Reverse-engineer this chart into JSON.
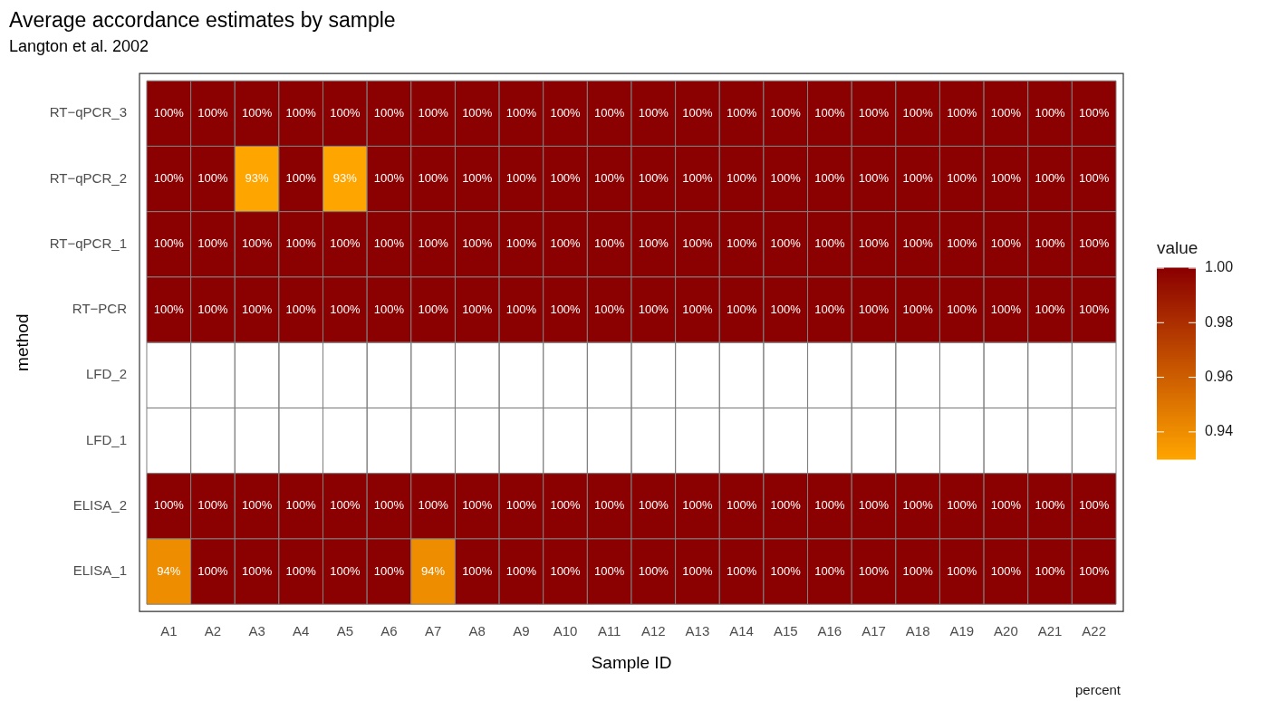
{
  "chart_data": {
    "type": "heatmap",
    "title": "Average accordance estimates by sample",
    "subtitle": "Langton et al. 2002",
    "xlabel": "Sample ID",
    "ylabel": "method",
    "legend_title": "value",
    "annotations": [
      "percent"
    ],
    "categories": [
      "A1",
      "A2",
      "A3",
      "A4",
      "A5",
      "A6",
      "A7",
      "A8",
      "A9",
      "A10",
      "A11",
      "A12",
      "A13",
      "A14",
      "A15",
      "A16",
      "A17",
      "A18",
      "A19",
      "A20",
      "A21",
      "A22"
    ],
    "y_categories": [
      "RT−qPCR_3",
      "RT−qPCR_2",
      "RT−qPCR_1",
      "RT−PCR",
      "LFD_2",
      "LFD_1",
      "ELISA_2",
      "ELISA_1"
    ],
    "cells": [
      [
        1,
        1,
        1,
        1,
        1,
        1,
        1,
        1,
        1,
        1,
        1,
        1,
        1,
        1,
        1,
        1,
        1,
        1,
        1,
        1,
        1,
        1
      ],
      [
        1,
        1,
        0.93,
        1,
        0.93,
        1,
        1,
        1,
        1,
        1,
        1,
        1,
        1,
        1,
        1,
        1,
        1,
        1,
        1,
        1,
        1,
        1
      ],
      [
        1,
        1,
        1,
        1,
        1,
        1,
        1,
        1,
        1,
        1,
        1,
        1,
        1,
        1,
        1,
        1,
        1,
        1,
        1,
        1,
        1,
        1
      ],
      [
        1,
        1,
        1,
        1,
        1,
        1,
        1,
        1,
        1,
        1,
        1,
        1,
        1,
        1,
        1,
        1,
        1,
        1,
        1,
        1,
        1,
        1
      ],
      [
        null,
        null,
        null,
        null,
        null,
        null,
        null,
        null,
        null,
        null,
        null,
        null,
        null,
        null,
        null,
        null,
        null,
        null,
        null,
        null,
        null,
        null
      ],
      [
        null,
        null,
        null,
        null,
        null,
        null,
        null,
        null,
        null,
        null,
        null,
        null,
        null,
        null,
        null,
        null,
        null,
        null,
        null,
        null,
        null,
        null
      ],
      [
        1,
        1,
        1,
        1,
        1,
        1,
        1,
        1,
        1,
        1,
        1,
        1,
        1,
        1,
        1,
        1,
        1,
        1,
        1,
        1,
        1,
        1
      ],
      [
        0.94,
        1,
        1,
        1,
        1,
        1,
        0.94,
        1,
        1,
        1,
        1,
        1,
        1,
        1,
        1,
        1,
        1,
        1,
        1,
        1,
        1,
        1
      ]
    ],
    "cell_labels": [
      [
        "100%",
        "100%",
        "100%",
        "100%",
        "100%",
        "100%",
        "100%",
        "100%",
        "100%",
        "100%",
        "100%",
        "100%",
        "100%",
        "100%",
        "100%",
        "100%",
        "100%",
        "100%",
        "100%",
        "100%",
        "100%",
        "100%"
      ],
      [
        "100%",
        "100%",
        "93%",
        "100%",
        "93%",
        "100%",
        "100%",
        "100%",
        "100%",
        "100%",
        "100%",
        "100%",
        "100%",
        "100%",
        "100%",
        "100%",
        "100%",
        "100%",
        "100%",
        "100%",
        "100%",
        "100%"
      ],
      [
        "100%",
        "100%",
        "100%",
        "100%",
        "100%",
        "100%",
        "100%",
        "100%",
        "100%",
        "100%",
        "100%",
        "100%",
        "100%",
        "100%",
        "100%",
        "100%",
        "100%",
        "100%",
        "100%",
        "100%",
        "100%",
        "100%"
      ],
      [
        "100%",
        "100%",
        "100%",
        "100%",
        "100%",
        "100%",
        "100%",
        "100%",
        "100%",
        "100%",
        "100%",
        "100%",
        "100%",
        "100%",
        "100%",
        "100%",
        "100%",
        "100%",
        "100%",
        "100%",
        "100%",
        "100%"
      ],
      [
        null,
        null,
        null,
        null,
        null,
        null,
        null,
        null,
        null,
        null,
        null,
        null,
        null,
        null,
        null,
        null,
        null,
        null,
        null,
        null,
        null,
        null
      ],
      [
        null,
        null,
        null,
        null,
        null,
        null,
        null,
        null,
        null,
        null,
        null,
        null,
        null,
        null,
        null,
        null,
        null,
        null,
        null,
        null,
        null,
        null
      ],
      [
        "100%",
        "100%",
        "100%",
        "100%",
        "100%",
        "100%",
        "100%",
        "100%",
        "100%",
        "100%",
        "100%",
        "100%",
        "100%",
        "100%",
        "100%",
        "100%",
        "100%",
        "100%",
        "100%",
        "100%",
        "100%",
        "100%"
      ],
      [
        "94%",
        "100%",
        "100%",
        "100%",
        "100%",
        "100%",
        "94%",
        "100%",
        "100%",
        "100%",
        "100%",
        "100%",
        "100%",
        "100%",
        "100%",
        "100%",
        "100%",
        "100%",
        "100%",
        "100%",
        "100%",
        "100%"
      ]
    ],
    "clim": [
      0.93,
      1.0
    ],
    "cticks": [
      {
        "value": 0.94,
        "label": "0.94"
      },
      {
        "value": 0.96,
        "label": "0.96"
      },
      {
        "value": 0.98,
        "label": "0.98"
      },
      {
        "value": 1.0,
        "label": "1.00"
      }
    ]
  }
}
